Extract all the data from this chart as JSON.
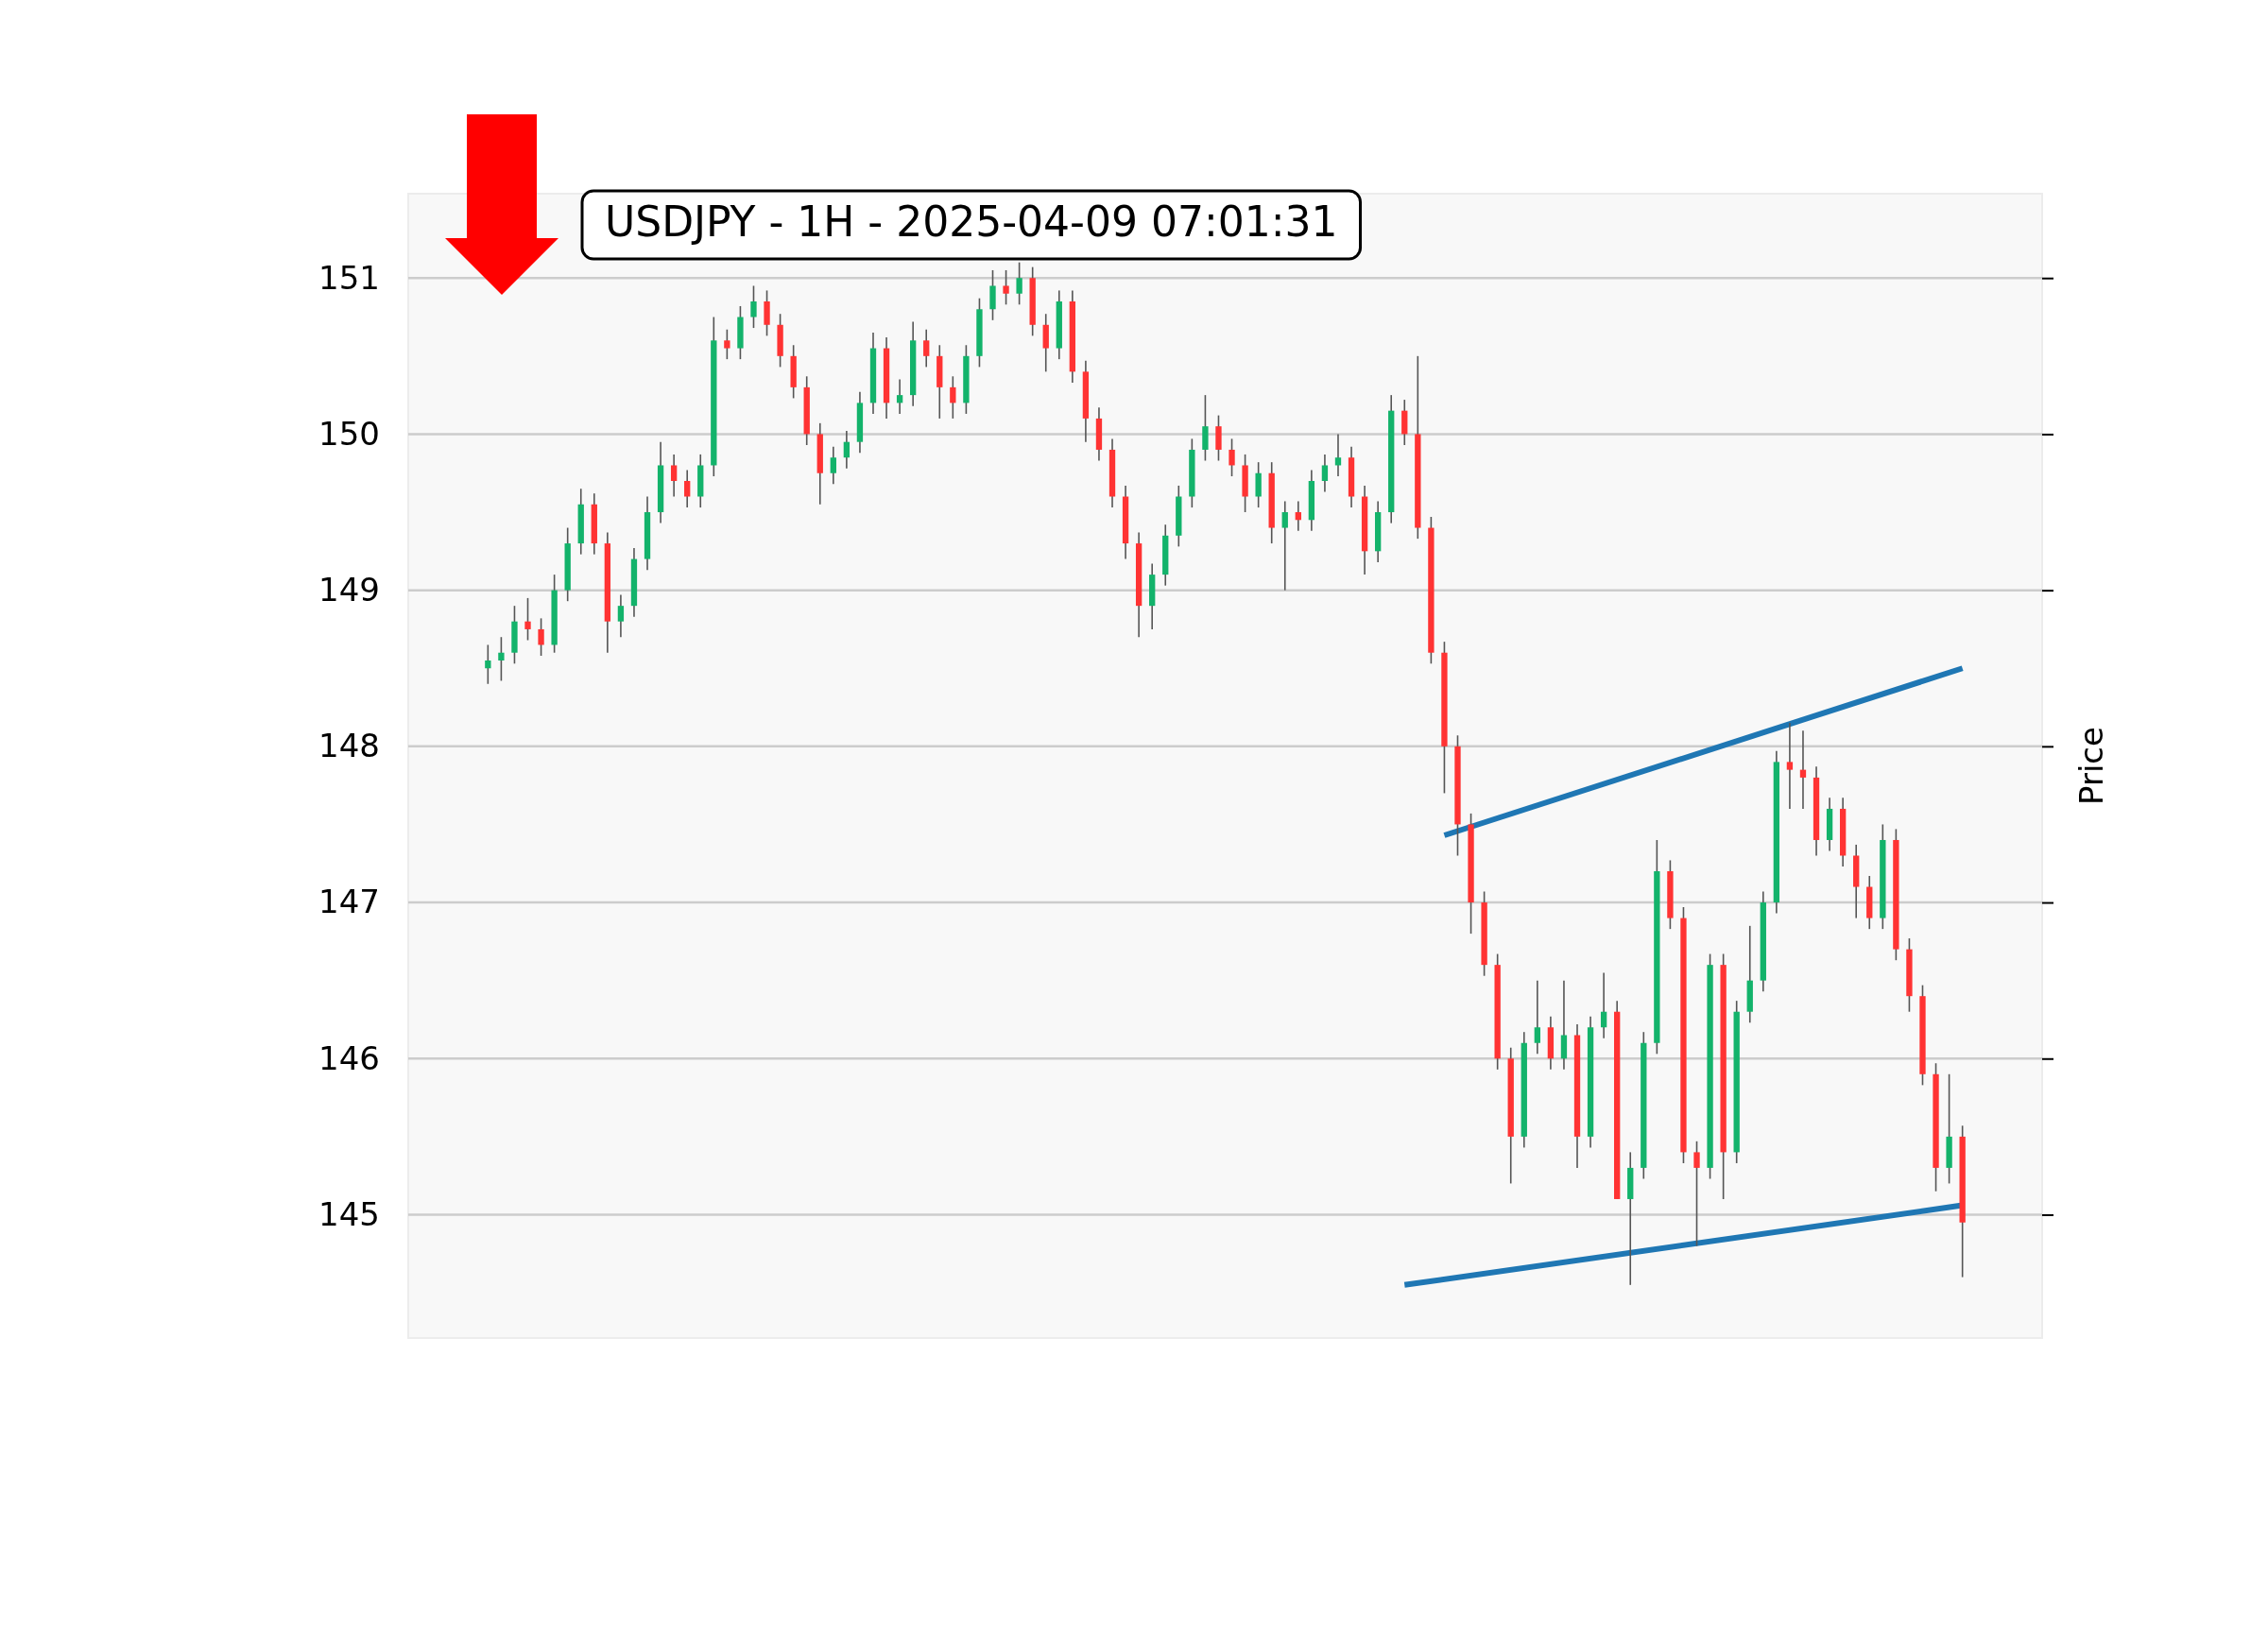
{
  "chart_data": {
    "type": "candlestick",
    "title": "USDJPY - 1H - 2025-04-09 07:01:31",
    "ylabel": "Price",
    "categories": [
      null,
      null,
      null,
      null,
      null,
      null,
      null,
      null,
      null,
      null,
      null,
      null,
      null,
      null,
      null,
      null,
      null,
      null,
      null,
      null,
      null,
      null,
      null,
      null,
      null,
      null,
      null,
      null,
      null,
      null,
      null,
      null,
      null,
      null,
      null,
      null,
      null,
      null,
      null,
      null,
      null,
      null,
      null,
      null,
      null,
      null,
      null,
      null,
      null,
      null,
      null,
      null,
      null,
      null,
      null,
      null,
      null,
      null,
      null,
      null,
      null,
      null,
      null,
      null,
      null,
      null,
      null,
      null,
      null,
      null,
      null,
      null,
      null,
      null,
      null,
      null,
      null,
      null,
      null,
      null,
      null,
      null,
      null,
      null,
      null,
      null,
      null,
      null,
      null,
      null,
      null,
      null,
      null,
      null,
      null,
      null,
      null,
      null,
      null,
      null,
      null,
      null,
      null,
      null,
      null,
      null,
      null,
      null,
      null,
      null,
      null,
      null
    ],
    "ohlc": [
      [
        148.5,
        148.65,
        148.4,
        148.55
      ],
      [
        148.55,
        148.7,
        148.42,
        148.6
      ],
      [
        148.6,
        148.9,
        148.53,
        148.8
      ],
      [
        148.8,
        148.95,
        148.68,
        148.75
      ],
      [
        148.75,
        148.82,
        148.58,
        148.65
      ],
      [
        148.65,
        149.1,
        148.6,
        149.0
      ],
      [
        149.0,
        149.4,
        148.93,
        149.3
      ],
      [
        149.3,
        149.65,
        149.23,
        149.55
      ],
      [
        149.55,
        149.62,
        149.23,
        149.3
      ],
      [
        149.3,
        149.37,
        148.6,
        148.8
      ],
      [
        148.8,
        148.97,
        148.7,
        148.9
      ],
      [
        148.9,
        149.27,
        148.83,
        149.2
      ],
      [
        149.2,
        149.6,
        149.13,
        149.5
      ],
      [
        149.5,
        149.95,
        149.43,
        149.8
      ],
      [
        149.8,
        149.87,
        149.6,
        149.7
      ],
      [
        149.7,
        149.77,
        149.53,
        149.6
      ],
      [
        149.6,
        149.87,
        149.53,
        149.8
      ],
      [
        149.8,
        150.75,
        149.73,
        150.6
      ],
      [
        150.6,
        150.67,
        150.48,
        150.55
      ],
      [
        150.55,
        150.82,
        150.48,
        150.75
      ],
      [
        150.75,
        150.95,
        150.68,
        150.85
      ],
      [
        150.85,
        150.92,
        150.63,
        150.7
      ],
      [
        150.7,
        150.77,
        150.43,
        150.5
      ],
      [
        150.5,
        150.57,
        150.23,
        150.3
      ],
      [
        150.3,
        150.37,
        149.93,
        150.0
      ],
      [
        150.0,
        150.07,
        149.55,
        149.75
      ],
      [
        149.75,
        149.92,
        149.68,
        149.85
      ],
      [
        149.85,
        150.02,
        149.78,
        149.95
      ],
      [
        149.95,
        150.27,
        149.88,
        150.2
      ],
      [
        150.2,
        150.65,
        150.13,
        150.55
      ],
      [
        150.55,
        150.62,
        150.1,
        150.2
      ],
      [
        150.2,
        150.35,
        150.13,
        150.25
      ],
      [
        150.25,
        150.72,
        150.18,
        150.6
      ],
      [
        150.6,
        150.67,
        150.43,
        150.5
      ],
      [
        150.5,
        150.57,
        150.1,
        150.3
      ],
      [
        150.3,
        150.37,
        150.1,
        150.2
      ],
      [
        150.2,
        150.57,
        150.13,
        150.5
      ],
      [
        150.5,
        150.87,
        150.43,
        150.8
      ],
      [
        150.8,
        151.05,
        150.73,
        150.95
      ],
      [
        150.95,
        151.05,
        150.83,
        150.9
      ],
      [
        150.9,
        151.1,
        150.83,
        151.0
      ],
      [
        151.0,
        151.07,
        150.63,
        150.7
      ],
      [
        150.7,
        150.77,
        150.4,
        150.55
      ],
      [
        150.55,
        150.92,
        150.48,
        150.85
      ],
      [
        150.85,
        150.92,
        150.33,
        150.4
      ],
      [
        150.4,
        150.47,
        149.95,
        150.1
      ],
      [
        150.1,
        150.17,
        149.83,
        149.9
      ],
      [
        149.9,
        149.97,
        149.53,
        149.6
      ],
      [
        149.6,
        149.67,
        149.2,
        149.3
      ],
      [
        149.3,
        149.37,
        148.7,
        148.9
      ],
      [
        148.9,
        149.17,
        148.75,
        149.1
      ],
      [
        149.1,
        149.42,
        149.03,
        149.35
      ],
      [
        149.35,
        149.67,
        149.28,
        149.6
      ],
      [
        149.6,
        149.97,
        149.53,
        149.9
      ],
      [
        149.9,
        150.25,
        149.83,
        150.05
      ],
      [
        150.05,
        150.12,
        149.83,
        149.9
      ],
      [
        149.9,
        149.97,
        149.73,
        149.8
      ],
      [
        149.8,
        149.87,
        149.5,
        149.6
      ],
      [
        149.6,
        149.82,
        149.53,
        149.75
      ],
      [
        149.75,
        149.82,
        149.3,
        149.4
      ],
      [
        149.4,
        149.57,
        149.0,
        149.5
      ],
      [
        149.5,
        149.57,
        149.38,
        149.45
      ],
      [
        149.45,
        149.77,
        149.38,
        149.7
      ],
      [
        149.7,
        149.87,
        149.63,
        149.8
      ],
      [
        149.8,
        150.0,
        149.73,
        149.85
      ],
      [
        149.85,
        149.92,
        149.53,
        149.6
      ],
      [
        149.6,
        149.67,
        149.1,
        149.25
      ],
      [
        149.25,
        149.57,
        149.18,
        149.5
      ],
      [
        149.5,
        150.25,
        149.43,
        150.15
      ],
      [
        150.15,
        150.22,
        149.93,
        150.0
      ],
      [
        150.0,
        150.5,
        149.33,
        149.4
      ],
      [
        149.4,
        149.47,
        148.53,
        148.6
      ],
      [
        148.6,
        148.67,
        147.7,
        148.0
      ],
      [
        148.0,
        148.07,
        147.3,
        147.5
      ],
      [
        147.5,
        147.57,
        146.8,
        147.0
      ],
      [
        147.0,
        147.07,
        146.53,
        146.6
      ],
      [
        146.6,
        146.67,
        145.93,
        146.0
      ],
      [
        146.0,
        146.07,
        145.2,
        145.5
      ],
      [
        145.5,
        146.17,
        145.43,
        146.1
      ],
      [
        146.1,
        146.5,
        146.03,
        146.2
      ],
      [
        146.2,
        146.27,
        145.93,
        146.0
      ],
      [
        146.0,
        146.5,
        145.93,
        146.15
      ],
      [
        146.15,
        146.22,
        145.3,
        145.5
      ],
      [
        145.5,
        146.27,
        145.43,
        146.2
      ],
      [
        146.2,
        146.55,
        146.13,
        146.3
      ],
      [
        146.3,
        146.37,
        145.1,
        145.1
      ],
      [
        145.1,
        145.4,
        144.55,
        145.3
      ],
      [
        145.3,
        146.17,
        145.23,
        146.1
      ],
      [
        146.1,
        147.4,
        146.03,
        147.2
      ],
      [
        147.2,
        147.27,
        146.83,
        146.9
      ],
      [
        146.9,
        146.97,
        145.33,
        145.4
      ],
      [
        145.4,
        145.47,
        144.8,
        145.3
      ],
      [
        145.3,
        146.67,
        145.23,
        146.6
      ],
      [
        146.6,
        146.67,
        145.1,
        145.4
      ],
      [
        145.4,
        146.37,
        145.33,
        146.3
      ],
      [
        146.3,
        146.85,
        146.23,
        146.5
      ],
      [
        146.5,
        147.07,
        146.43,
        147.0
      ],
      [
        147.0,
        147.97,
        146.93,
        147.9
      ],
      [
        147.9,
        148.15,
        147.6,
        147.85
      ],
      [
        147.85,
        148.1,
        147.6,
        147.8
      ],
      [
        147.8,
        147.87,
        147.3,
        147.4
      ],
      [
        147.4,
        147.67,
        147.33,
        147.6
      ],
      [
        147.6,
        147.67,
        147.23,
        147.3
      ],
      [
        147.3,
        147.37,
        146.9,
        147.1
      ],
      [
        147.1,
        147.17,
        146.83,
        146.9
      ],
      [
        146.9,
        147.5,
        146.83,
        147.4
      ],
      [
        147.4,
        147.47,
        146.63,
        146.7
      ],
      [
        146.7,
        146.77,
        146.3,
        146.4
      ],
      [
        146.4,
        146.47,
        145.83,
        145.9
      ],
      [
        145.9,
        145.97,
        145.15,
        145.3
      ],
      [
        145.3,
        145.9,
        145.2,
        145.5
      ],
      [
        145.5,
        145.57,
        144.6,
        144.95
      ]
    ],
    "series": [
      {
        "type": "line",
        "color": "#1f77b4",
        "values": [
          null,
          null,
          null,
          null,
          null,
          null,
          null,
          null,
          null,
          null,
          null,
          null,
          null,
          null,
          null,
          null,
          null,
          null,
          null,
          null,
          null,
          null,
          null,
          null,
          null,
          null,
          null,
          null,
          null,
          null,
          null,
          null,
          null,
          null,
          null,
          null,
          null,
          null,
          null,
          null,
          null,
          null,
          null,
          null,
          null,
          null,
          null,
          null,
          null,
          null,
          null,
          null,
          null,
          null,
          null,
          null,
          null,
          null,
          null,
          null,
          null,
          null,
          null,
          null,
          null,
          null,
          null,
          null,
          null,
          null,
          null,
          null,
          147.43,
          null,
          null,
          null,
          null,
          null,
          null,
          null,
          null,
          null,
          null,
          null,
          null,
          null,
          null,
          null,
          null,
          null,
          null,
          null,
          null,
          null,
          null,
          null,
          null,
          null,
          null,
          null,
          null,
          null,
          null,
          null,
          null,
          null,
          null,
          null,
          null,
          null,
          null,
          148.5
        ]
      },
      {
        "type": "line",
        "color": "#1f77b4",
        "values": [
          null,
          null,
          null,
          null,
          null,
          null,
          null,
          null,
          null,
          null,
          null,
          null,
          null,
          null,
          null,
          null,
          null,
          null,
          null,
          null,
          null,
          null,
          null,
          null,
          null,
          null,
          null,
          null,
          null,
          null,
          null,
          null,
          null,
          null,
          null,
          null,
          null,
          null,
          null,
          null,
          null,
          null,
          null,
          null,
          null,
          null,
          null,
          null,
          null,
          null,
          null,
          null,
          null,
          null,
          null,
          null,
          null,
          null,
          null,
          null,
          null,
          null,
          null,
          null,
          null,
          null,
          null,
          null,
          null,
          144.55,
          null,
          null,
          null,
          null,
          null,
          null,
          null,
          null,
          null,
          null,
          null,
          null,
          null,
          null,
          null,
          null,
          null,
          null,
          null,
          null,
          null,
          null,
          null,
          null,
          null,
          null,
          null,
          null,
          null,
          null,
          null,
          null,
          null,
          null,
          null,
          null,
          null,
          null,
          null,
          null,
          null,
          145.06
        ]
      }
    ],
    "ylim": [
      144.21,
      151.54
    ],
    "yticks": [
      145,
      146,
      147,
      148,
      149,
      150,
      151
    ],
    "grid": "y",
    "tick_labels": "y"
  }
}
